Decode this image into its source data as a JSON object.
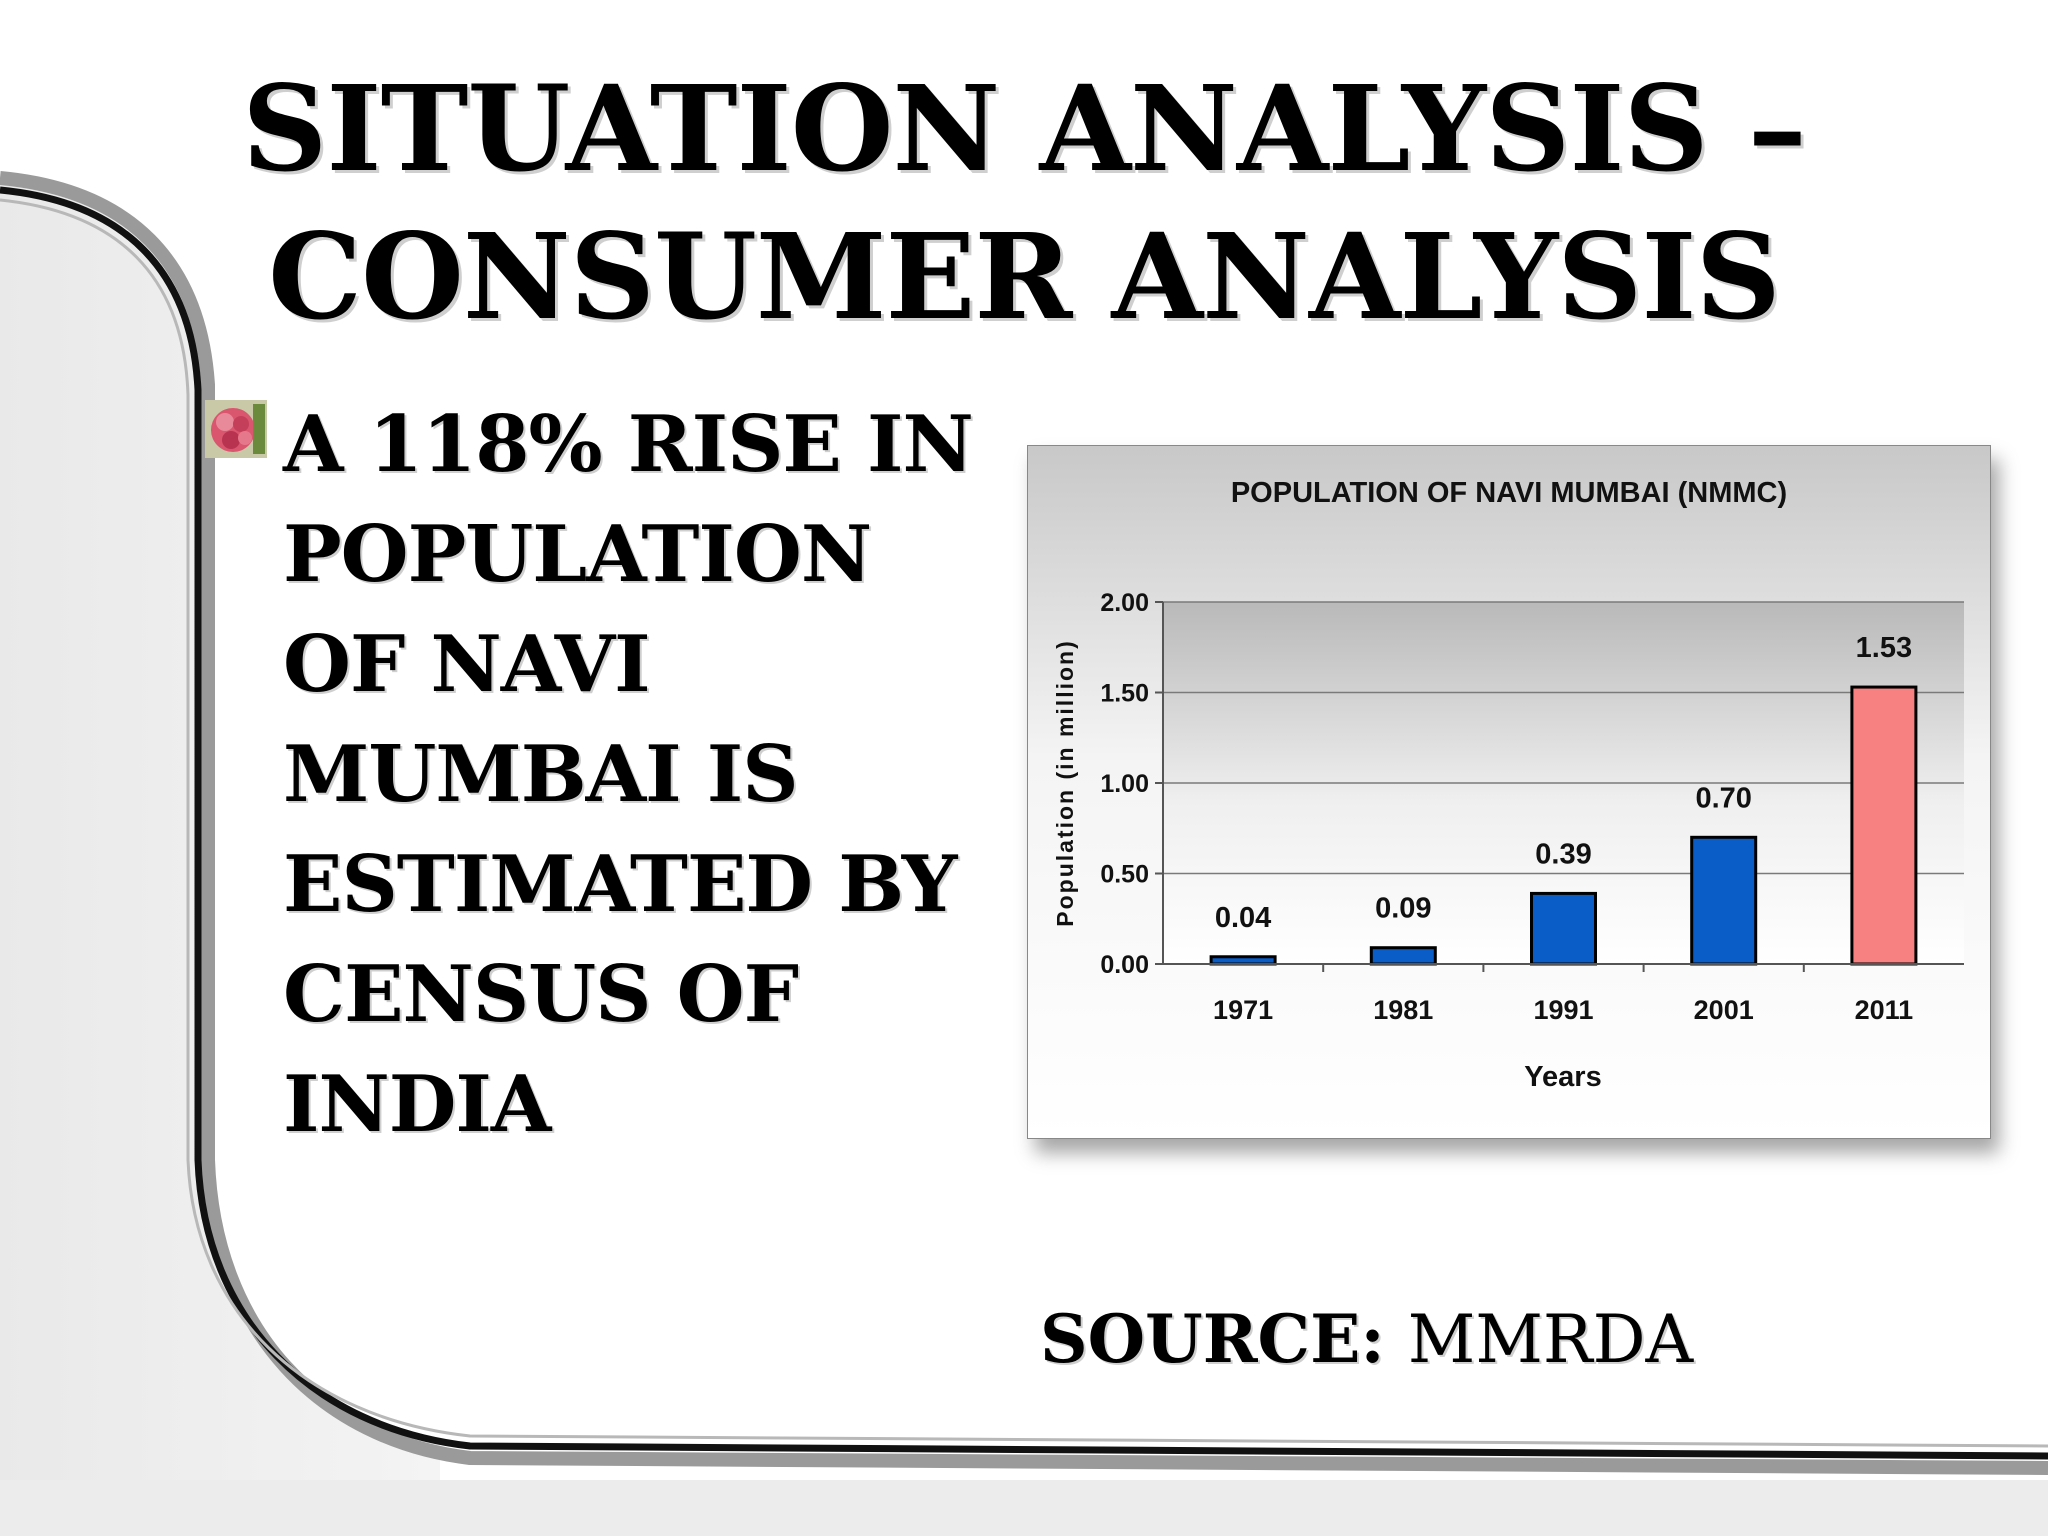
{
  "slide": {
    "title_line1": "Situation Analysis –",
    "title_line2": "Consumer Analysis",
    "bullet_text": "A 118% rise in population of Navi Mumbai is estimated by Census of India",
    "source_label": "Source:",
    "source_value": "MMRDA"
  },
  "chart_data": {
    "type": "bar",
    "title": "POPULATION OF NAVI MUMBAI (NMMC)",
    "xlabel": "Years",
    "ylabel": "Population (in million)",
    "categories": [
      "1971",
      "1981",
      "1991",
      "2001",
      "2011"
    ],
    "values": [
      0.04,
      0.09,
      0.39,
      0.7,
      1.53
    ],
    "data_labels": [
      "0.04",
      "0.09",
      "0.39",
      "0.70",
      "1.53"
    ],
    "ylim": [
      0,
      2
    ],
    "yticks": [
      "0.00",
      "0.50",
      "1.00",
      "1.50",
      "2.00"
    ],
    "grid": true,
    "legend": "none",
    "bar_colors": [
      "#0a5cc7",
      "#0a5cc7",
      "#0a5cc7",
      "#0a5cc7",
      "#f78080"
    ]
  },
  "icons": {
    "bullet": "flower-bullet-icon"
  }
}
